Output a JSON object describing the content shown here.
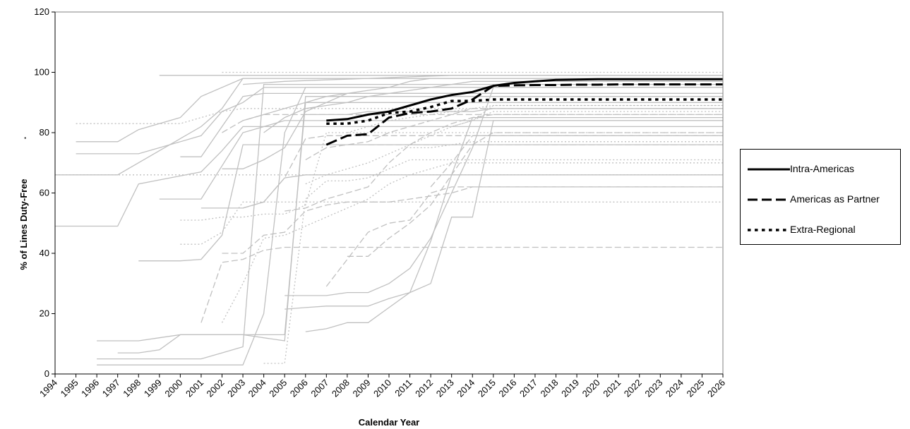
{
  "chart_data": {
    "type": "line",
    "title": "",
    "xlabel": "Calendar Year",
    "ylabel": "% of Lines Duty-Free",
    "ylabel_suffix": "·",
    "ylim": [
      0,
      120
    ],
    "yticks": [
      0,
      20,
      40,
      60,
      80,
      100,
      120
    ],
    "x": [
      "1994",
      "1995",
      "1996",
      "1997",
      "1998",
      "1999",
      "2000",
      "2001",
      "2002",
      "2003",
      "2004",
      "2005",
      "2006",
      "2007",
      "2008",
      "2009",
      "2010",
      "2011",
      "2012",
      "2013",
      "2014",
      "2015",
      "2016",
      "2017",
      "2018",
      "2019",
      "2020",
      "2021",
      "2022",
      "2023",
      "2024",
      "2025",
      "2026"
    ],
    "grid": false,
    "legend_position": "right",
    "series": [
      {
        "name": "Intra-Americas",
        "style": "solid",
        "color": "#000000",
        "x": [
          2007,
          2008,
          2009,
          2010,
          2011,
          2012,
          2013,
          2014,
          2015,
          2016,
          2017,
          2018,
          2019,
          2020,
          2021,
          2022,
          2023,
          2024,
          2025,
          2026
        ],
        "values": [
          84,
          84.5,
          86,
          87,
          89,
          91,
          92.5,
          93.5,
          95.5,
          96.5,
          97,
          97.5,
          97.6,
          97.7,
          97.7,
          97.7,
          97.7,
          97.7,
          97.7,
          97.7
        ]
      },
      {
        "name": "Americas as Partner",
        "style": "long-dash",
        "color": "#000000",
        "x": [
          2007,
          2008,
          2009,
          2010,
          2011,
          2012,
          2013,
          2014,
          2015,
          2016,
          2017,
          2018,
          2019,
          2020,
          2021,
          2022,
          2023,
          2024,
          2025,
          2026
        ],
        "values": [
          76,
          79,
          79.5,
          85,
          86.5,
          87,
          88,
          91,
          95.5,
          95.7,
          95.8,
          95.8,
          95.9,
          95.9,
          96,
          96,
          96,
          96,
          96,
          96
        ]
      },
      {
        "name": "Extra-Regional",
        "style": "dotted",
        "color": "#000000",
        "x": [
          2007,
          2008,
          2009,
          2010,
          2011,
          2012,
          2013,
          2014,
          2015,
          2016,
          2017,
          2018,
          2019,
          2020,
          2021,
          2022,
          2023,
          2024,
          2025,
          2026
        ],
        "values": [
          83,
          83,
          84,
          86.5,
          87,
          88.5,
          90.5,
          90.5,
          91,
          91,
          91,
          91,
          91,
          91,
          91,
          91,
          91,
          91,
          91,
          91
        ]
      }
    ],
    "background_series_color": "#c0c0c0",
    "background_series": [
      {
        "style": "solid",
        "x": [
          1994,
          1997,
          1998,
          2001,
          2002,
          2003,
          2004,
          2026
        ],
        "values": [
          49,
          49,
          63,
          67,
          74,
          82,
          82,
          82
        ]
      },
      {
        "style": "solid",
        "x": [
          1994,
          1997,
          1999,
          2001,
          2002,
          2003,
          2026
        ],
        "values": [
          66,
          66,
          74,
          82,
          88,
          98,
          98
        ]
      },
      {
        "style": "solid",
        "x": [
          1995,
          1997,
          1998,
          2000,
          2001,
          2003,
          2026
        ],
        "values": [
          77,
          77,
          81,
          85,
          92,
          98,
          98
        ]
      },
      {
        "style": "solid",
        "x": [
          1995,
          1998,
          1999,
          2001,
          2002,
          2003,
          2004,
          2026
        ],
        "values": [
          73,
          73,
          75,
          79,
          87,
          90,
          95,
          95
        ]
      },
      {
        "style": "solid",
        "x": [
          1996,
          2003,
          2004,
          2005,
          2006,
          2026
        ],
        "values": [
          3,
          3,
          20,
          80,
          95,
          95
        ]
      },
      {
        "style": "solid",
        "x": [
          1996,
          2000,
          2001,
          2002,
          2003,
          2004,
          2026
        ],
        "values": [
          5,
          5,
          5,
          7,
          9,
          96,
          96
        ]
      },
      {
        "style": "solid",
        "x": [
          1996,
          1998,
          1999,
          2000,
          2001,
          2003,
          2005,
          2006,
          2026
        ],
        "values": [
          11,
          11,
          12,
          13,
          13,
          13,
          13,
          90,
          90
        ]
      },
      {
        "style": "solid",
        "x": [
          1997,
          1998,
          1999,
          2000,
          2001,
          2002,
          2003,
          2005,
          2006,
          2026
        ],
        "values": [
          7,
          7,
          8,
          13,
          13,
          13,
          13,
          11,
          92,
          92
        ]
      },
      {
        "style": "solid",
        "x": [
          1998,
          2000,
          2001,
          2002,
          2003,
          2026
        ],
        "values": [
          37.5,
          37.5,
          38,
          46,
          76,
          76
        ]
      },
      {
        "style": "solid",
        "x": [
          1999,
          2000,
          2001,
          2003,
          2005,
          2026
        ],
        "values": [
          58,
          58,
          58,
          80,
          84,
          84
        ]
      },
      {
        "style": "solid",
        "x": [
          2000,
          2001,
          2002,
          2003,
          2004,
          2026
        ],
        "values": [
          72,
          72,
          82,
          92,
          93,
          93
        ]
      },
      {
        "style": "solid",
        "x": [
          2001,
          2003,
          2004,
          2005,
          2006,
          2026
        ],
        "values": [
          55,
          55,
          57,
          65,
          66,
          66
        ]
      },
      {
        "style": "solid",
        "x": [
          2002,
          2003,
          2004,
          2005,
          2006,
          2007,
          2008,
          2026
        ],
        "values": [
          68,
          68,
          71,
          75,
          87,
          90,
          93,
          93
        ]
      },
      {
        "style": "solid",
        "x": [
          2005,
          2006,
          2007,
          2008,
          2009,
          2010,
          2011,
          2012,
          2013,
          2014,
          2015,
          2026
        ],
        "values": [
          26,
          26,
          26,
          27,
          27,
          30,
          35,
          45,
          60,
          75,
          95,
          95
        ]
      },
      {
        "style": "solid",
        "x": [
          2005,
          2006,
          2007,
          2008,
          2009,
          2010,
          2011,
          2012,
          2013,
          2014,
          2026
        ],
        "values": [
          21.5,
          22,
          22.5,
          22.5,
          22.5,
          25,
          27,
          44,
          66,
          85,
          85
        ]
      },
      {
        "style": "solid",
        "x": [
          2006,
          2007,
          2008,
          2009,
          2010,
          2011,
          2012,
          2013,
          2014,
          2015,
          2026
        ],
        "values": [
          14,
          15,
          17,
          17,
          22,
          27,
          30,
          52,
          52,
          84,
          84
        ]
      },
      {
        "style": "solid",
        "x": [
          2004,
          2005,
          2006,
          2007,
          2008,
          2009,
          2010,
          2011,
          2012,
          2013,
          2014,
          2026
        ],
        "values": [
          80,
          85,
          88,
          89,
          90,
          92,
          93,
          94,
          95,
          96,
          97,
          97
        ]
      },
      {
        "style": "solid",
        "x": [
          2003,
          2004,
          2005,
          2006,
          2007,
          2008,
          2009,
          2010,
          2011,
          2012,
          2026
        ],
        "values": [
          84,
          86,
          88,
          90,
          92,
          93,
          94,
          95,
          97,
          98,
          98
        ]
      },
      {
        "style": "solid",
        "x": [
          1999,
          2001,
          2002,
          2026
        ],
        "values": [
          99,
          99,
          99,
          99
        ]
      },
      {
        "style": "solid",
        "x": [
          2003,
          2005,
          2007,
          2009,
          2011,
          2013,
          2026
        ],
        "values": [
          96,
          97,
          97.5,
          98,
          98.5,
          99,
          99
        ]
      },
      {
        "style": "solid",
        "x": [
          2006,
          2007,
          2008,
          2009,
          2010,
          2011,
          2012,
          2013,
          2014,
          2015,
          2026
        ],
        "values": [
          86,
          86,
          86,
          87,
          87,
          87,
          87,
          87,
          87,
          88,
          88
        ]
      },
      {
        "style": "dash",
        "x": [
          2001,
          2002,
          2003,
          2004,
          2005,
          2026
        ],
        "values": [
          17,
          37,
          38,
          41,
          42,
          42
        ]
      },
      {
        "style": "dash",
        "x": [
          2002,
          2003,
          2004,
          2005,
          2006,
          2007,
          2008,
          2009,
          2010,
          2011,
          2012,
          2013,
          2014,
          2026
        ],
        "values": [
          40,
          40,
          46,
          47,
          54,
          56,
          57,
          57,
          57,
          58,
          59,
          60,
          62,
          62
        ]
      },
      {
        "style": "dash",
        "x": [
          2003,
          2004,
          2005,
          2006,
          2007,
          2026
        ],
        "values": [
          55,
          57,
          65,
          78,
          79,
          79
        ]
      },
      {
        "style": "dash",
        "x": [
          2007,
          2008,
          2009,
          2010,
          2011,
          2012,
          2013,
          2026
        ],
        "values": [
          29,
          38,
          47,
          50,
          51,
          60,
          62,
          62
        ]
      },
      {
        "style": "dash",
        "x": [
          2008,
          2009,
          2010,
          2011,
          2012,
          2013,
          2014,
          2015,
          2026
        ],
        "values": [
          39,
          39,
          45,
          50,
          56,
          66,
          76,
          80,
          80
        ]
      },
      {
        "style": "dash",
        "x": [
          2005,
          2006,
          2007,
          2008,
          2009,
          2010,
          2011,
          2012,
          2013,
          2014,
          2015,
          2026
        ],
        "values": [
          54,
          55,
          58,
          60,
          62,
          70,
          76,
          80,
          83,
          85,
          86,
          86
        ]
      },
      {
        "style": "dash",
        "x": [
          2006,
          2007,
          2008,
          2009,
          2010,
          2011,
          2012,
          2013,
          2014,
          2026
        ],
        "values": [
          71,
          75,
          76,
          77,
          80,
          82,
          84,
          86,
          88,
          88
        ]
      },
      {
        "style": "dash",
        "x": [
          2009,
          2010,
          2011,
          2012,
          2013,
          2014,
          2015,
          2026
        ],
        "values": [
          76,
          76,
          76,
          76,
          76,
          76,
          76,
          76
        ]
      },
      {
        "style": "dash",
        "x": [
          2012,
          2013,
          2014,
          2015,
          2026
        ],
        "values": [
          62,
          70,
          79,
          79,
          79
        ]
      },
      {
        "style": "dash",
        "x": [
          2002,
          2003,
          2004,
          2026
        ],
        "values": [
          80,
          84,
          86,
          86
        ]
      },
      {
        "style": "dot",
        "x": [
          1995,
          1996,
          1997,
          1998,
          1999,
          2000,
          2001,
          2002,
          2003,
          2026
        ],
        "values": [
          83,
          83,
          83,
          83,
          83,
          83,
          85,
          87,
          88,
          88
        ]
      },
      {
        "style": "dot",
        "x": [
          1994,
          1997,
          2026
        ],
        "values": [
          66,
          66,
          66
        ]
      },
      {
        "style": "dot",
        "x": [
          2000,
          2001,
          2002,
          2003,
          2026
        ],
        "values": [
          43,
          43,
          47,
          57,
          57
        ]
      },
      {
        "style": "dot",
        "x": [
          2000,
          2001,
          2002,
          2003,
          2004,
          2005,
          2006,
          2007,
          2026
        ],
        "values": [
          51,
          51,
          52,
          52,
          53,
          53,
          56,
          80,
          80
        ]
      },
      {
        "style": "dot",
        "x": [
          2004,
          2005,
          2006,
          2007,
          2008,
          2009,
          2010,
          2011,
          2026
        ],
        "values": [
          3.5,
          3.5,
          58,
          64,
          64,
          65,
          68,
          71,
          71
        ]
      },
      {
        "style": "dot",
        "x": [
          2002,
          2003,
          2004,
          2005,
          2006,
          2007,
          2008,
          2009,
          2010,
          2011,
          2012,
          2013,
          2014,
          2026
        ],
        "values": [
          17,
          30,
          45,
          46,
          49,
          52,
          55,
          58,
          63,
          66,
          68,
          70,
          70,
          70
        ]
      },
      {
        "style": "dot",
        "x": [
          2006,
          2007,
          2008,
          2009,
          2010,
          2011,
          2012,
          2013,
          2014,
          2015,
          2026
        ],
        "values": [
          63,
          66,
          68,
          70,
          73,
          76,
          79,
          82,
          84,
          87,
          87
        ]
      },
      {
        "style": "dot",
        "x": [
          2002,
          2026
        ],
        "values": [
          100,
          100
        ]
      },
      {
        "style": "dot",
        "x": [
          2011,
          2012,
          2013,
          2014,
          2015,
          2026
        ],
        "values": [
          75,
          75,
          76,
          77,
          77,
          77
        ]
      },
      {
        "style": "dot",
        "x": [
          2013,
          2014,
          2015,
          2026
        ],
        "values": [
          82,
          84,
          89,
          89
        ]
      },
      {
        "style": "dot",
        "x": [
          2008,
          2009,
          2010,
          2011,
          2012,
          2013,
          2014,
          2015,
          2026
        ],
        "values": [
          80,
          82,
          84,
          85,
          86,
          87,
          88,
          89,
          89
        ]
      }
    ]
  }
}
